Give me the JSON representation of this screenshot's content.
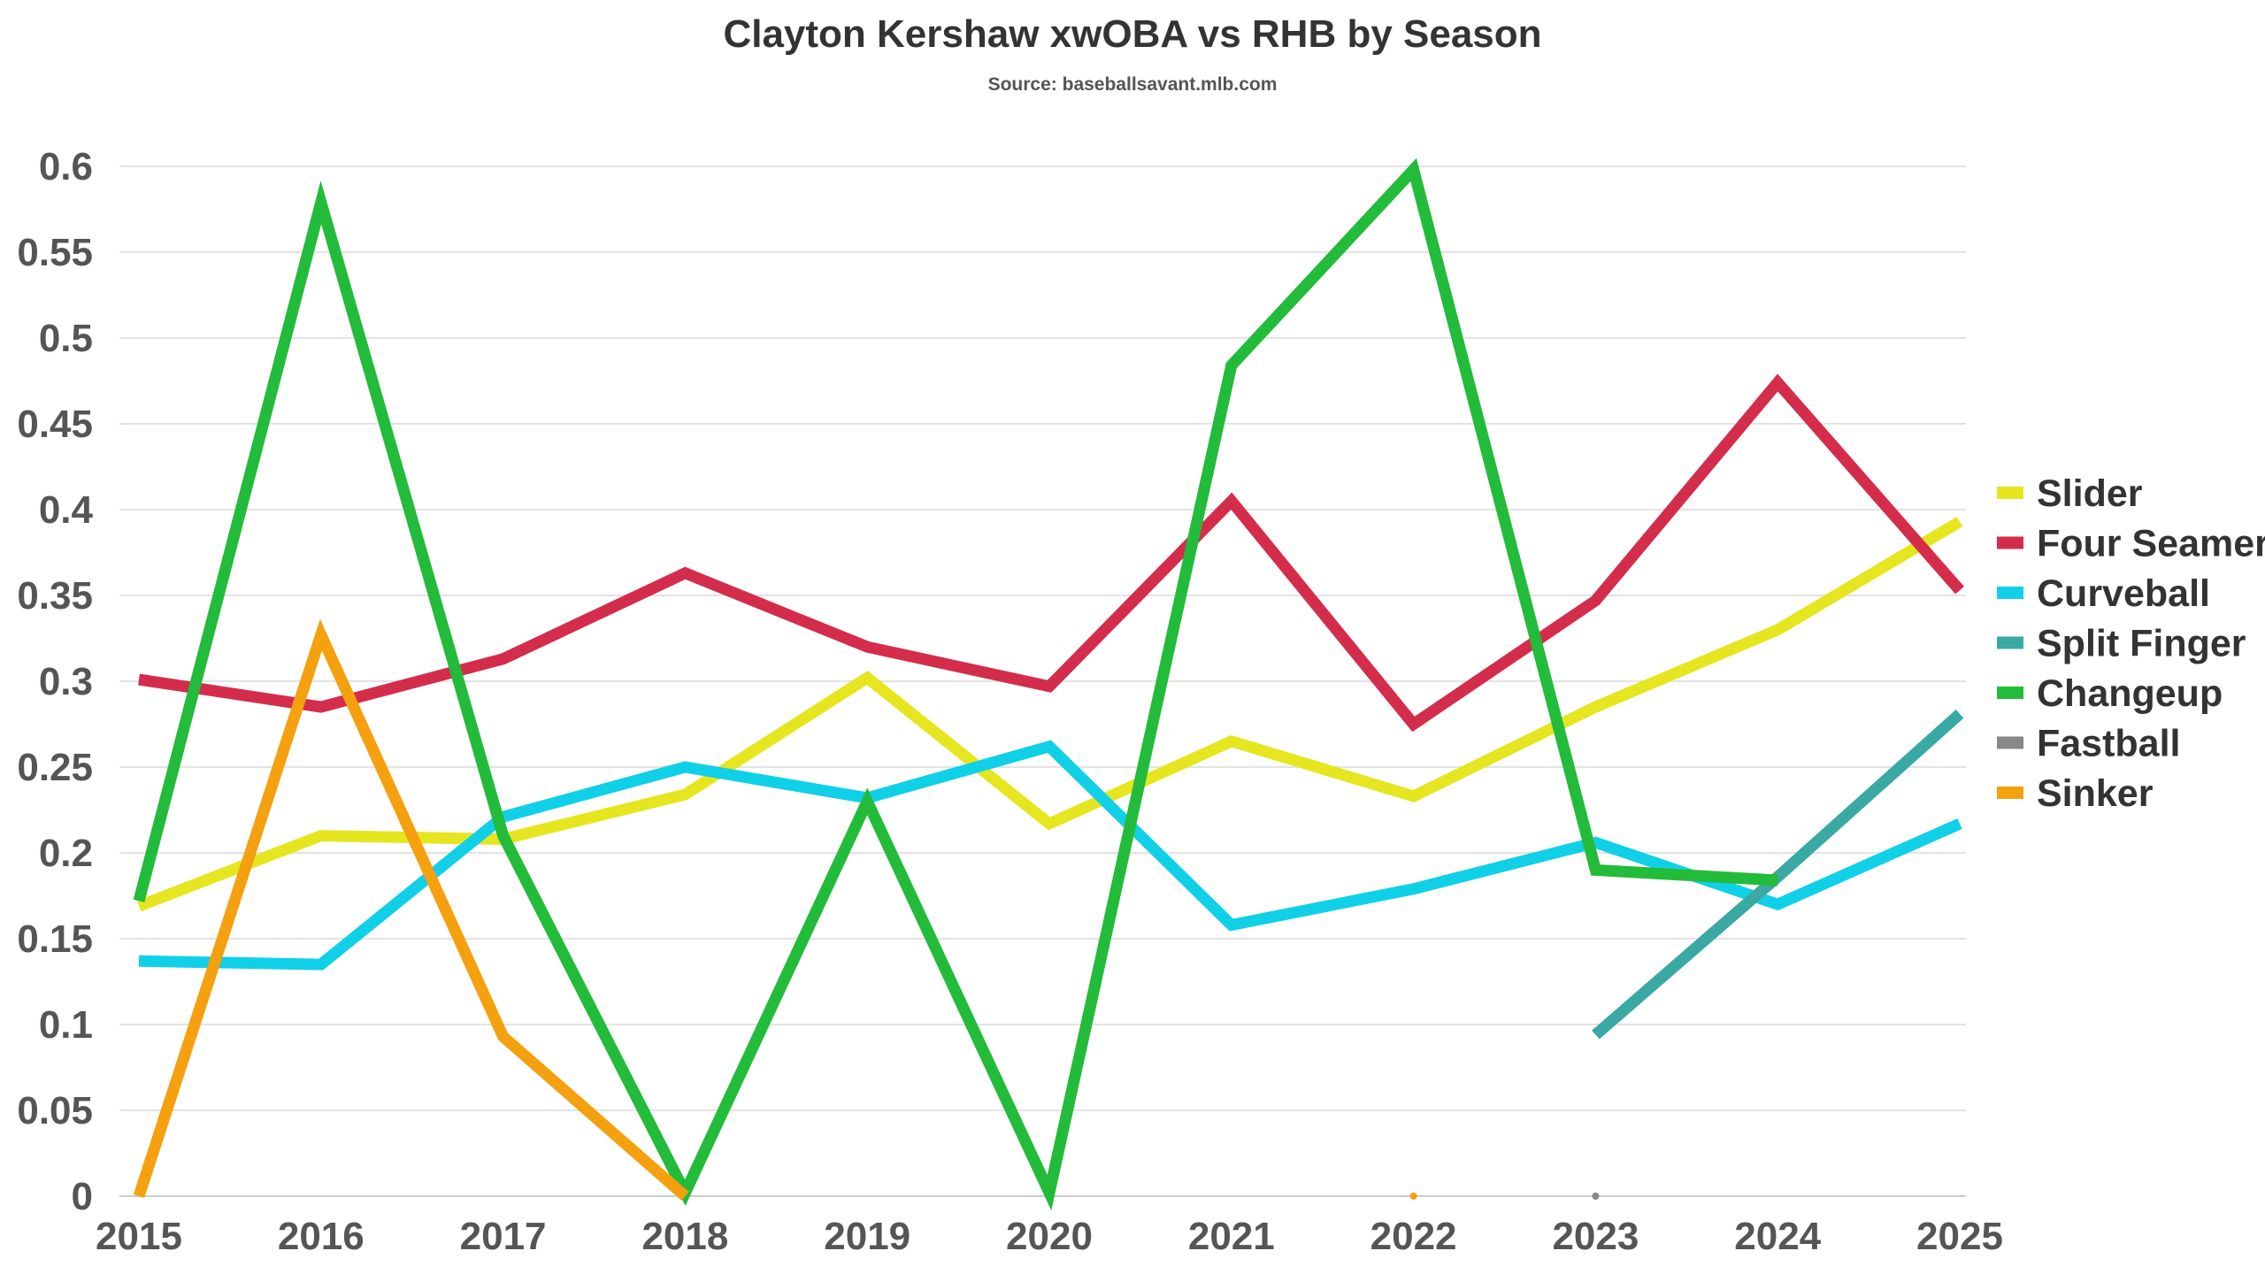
{
  "chart_data": {
    "type": "line",
    "title": "Clayton Kershaw xwOBA vs RHB by Season",
    "subtitle": "Source: baseballsavant.mlb.com",
    "xlabel": "",
    "ylabel": "",
    "x": [
      "2015",
      "2016",
      "2017",
      "2018",
      "2019",
      "2020",
      "2021",
      "2022",
      "2023",
      "2024",
      "2025"
    ],
    "ylim": [
      0,
      0.6
    ],
    "y_ticks": [
      "0",
      "0.05",
      "0.1",
      "0.15",
      "0.2",
      "0.25",
      "0.3",
      "0.35",
      "0.4",
      "0.45",
      "0.5",
      "0.55",
      "0.6"
    ],
    "grid": "horizontal",
    "legend_position": "right",
    "series": [
      {
        "name": "Slider",
        "color": "#e6e620",
        "values": [
          0.169,
          0.21,
          0.208,
          0.234,
          0.302,
          0.217,
          0.265,
          0.233,
          0.285,
          0.33,
          0.393
        ]
      },
      {
        "name": "Four Seamer",
        "color": "#d42d4b",
        "values": [
          0.301,
          0.285,
          0.313,
          0.363,
          0.32,
          0.297,
          0.405,
          0.275,
          0.347,
          0.474,
          0.353
        ]
      },
      {
        "name": "Curveball",
        "color": "#10d0e8",
        "values": [
          0.137,
          0.135,
          0.221,
          0.25,
          0.232,
          0.262,
          0.158,
          0.179,
          0.206,
          0.17,
          0.217
        ]
      },
      {
        "name": "Split Finger",
        "color": "#3aa9a4",
        "values": [
          null,
          null,
          null,
          null,
          null,
          null,
          null,
          null,
          0.094,
          0.186,
          0.281
        ]
      },
      {
        "name": "Changeup",
        "color": "#22bb3a",
        "values": [
          0.172,
          0.579,
          0.21,
          0.002,
          0.23,
          0.002,
          0.484,
          0.598,
          0.19,
          0.184,
          null
        ]
      },
      {
        "name": "Fastball",
        "color": "#888888",
        "values": [
          null,
          null,
          null,
          null,
          null,
          null,
          null,
          null,
          0.0,
          null,
          null
        ]
      },
      {
        "name": "Sinker",
        "color": "#f5a00f",
        "values": [
          0.0,
          0.327,
          0.093,
          0.0,
          null,
          null,
          null,
          0.0,
          null,
          null,
          null
        ]
      }
    ]
  }
}
